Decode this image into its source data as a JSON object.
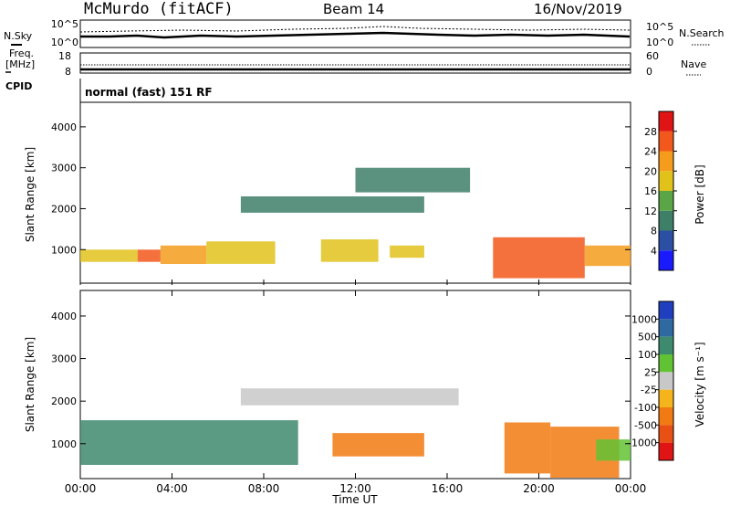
{
  "header": {
    "station": "McMurdo (fitACF)",
    "beam": "Beam 14",
    "date": "16/Nov/2019"
  },
  "panels": {
    "nsky_label": "N.Sky",
    "nsearch_label": "N.Search",
    "freq_label_line1": "Freq.",
    "freq_label_line2": "[MHz]",
    "nave_label": "Nave",
    "cpid_label": "CPID",
    "cpid_value": "normal (fast) 151 RF",
    "noise_ticks_left": [
      "10^5",
      "10^0"
    ],
    "noise_ticks_right": [
      "10^5",
      "10^0"
    ],
    "freq_ticks": [
      "18",
      "8"
    ],
    "nave_ticks": [
      "60",
      "0"
    ]
  },
  "chart_data": [
    {
      "type": "heatmap",
      "name": "power",
      "ylabel": "Slant Range [km]",
      "yticks": [
        "1000",
        "2000",
        "3000",
        "4000"
      ],
      "ylim": [
        180,
        4600
      ],
      "colorbar_label": "Power [dB]",
      "colorbar_ticks": [
        "4",
        "8",
        "12",
        "16",
        "20",
        "24",
        "28"
      ],
      "colors": [
        "#1a1aff",
        "#2a4fa3",
        "#3e7f68",
        "#5aa646",
        "#e0c21b",
        "#f59c1c",
        "#f2581c",
        "#e01414"
      ],
      "bands": [
        {
          "x": [
            0.0,
            2.5
          ],
          "y": [
            700,
            1000
          ],
          "value": 17
        },
        {
          "x": [
            2.5,
            3.5
          ],
          "y": [
            700,
            1000
          ],
          "value": 26
        },
        {
          "x": [
            3.5,
            5.5
          ],
          "y": [
            650,
            1100
          ],
          "value": 20
        },
        {
          "x": [
            5.5,
            8.5
          ],
          "y": [
            650,
            1200
          ],
          "value": 18
        },
        {
          "x": [
            10.5,
            13.0
          ],
          "y": [
            700,
            1250
          ],
          "value": 16
        },
        {
          "x": [
            13.5,
            15.0
          ],
          "y": [
            800,
            1100
          ],
          "value": 16
        },
        {
          "x": [
            18.0,
            22.0
          ],
          "y": [
            300,
            1300
          ],
          "value": 26
        },
        {
          "x": [
            22.0,
            24.0
          ],
          "y": [
            600,
            1100
          ],
          "value": 20
        },
        {
          "x": [
            7.0,
            15.0
          ],
          "y": [
            1900,
            2300
          ],
          "value": 10
        },
        {
          "x": [
            12.0,
            17.0
          ],
          "y": [
            2400,
            3000
          ],
          "value": 8
        }
      ]
    },
    {
      "type": "heatmap",
      "name": "velocity",
      "ylabel": "Slant Range [km]",
      "yticks": [
        "1000",
        "2000",
        "3000",
        "4000"
      ],
      "ylim": [
        180,
        4600
      ],
      "xlabel": "Time UT",
      "xticks": [
        "00:00",
        "04:00",
        "08:00",
        "12:00",
        "16:00",
        "20:00",
        "00:00"
      ],
      "colorbar_label": "Velocity [m s⁻¹]",
      "colorbar_ticks": [
        "1000",
        "500",
        "100",
        "25",
        "-25",
        "-100",
        "-500",
        "-1000"
      ],
      "colors": [
        "#1f3fbf",
        "#2e6aa0",
        "#3e8a6e",
        "#61c234",
        "#c8c8c8",
        "#f5b41c",
        "#f27a12",
        "#e85014",
        "#e01414"
      ],
      "bands": [
        {
          "x": [
            0.0,
            9.5
          ],
          "y": [
            500,
            1550
          ],
          "value": 150
        },
        {
          "x": [
            7.0,
            16.5
          ],
          "y": [
            1900,
            2300
          ],
          "value": 0
        },
        {
          "x": [
            11.0,
            15.0
          ],
          "y": [
            700,
            1250
          ],
          "value": -150
        },
        {
          "x": [
            18.5,
            20.5
          ],
          "y": [
            300,
            1500
          ],
          "value": -150
        },
        {
          "x": [
            20.5,
            23.5
          ],
          "y": [
            200,
            1400
          ],
          "value": -120
        },
        {
          "x": [
            22.5,
            24.0
          ],
          "y": [
            600,
            1100
          ],
          "value": 80
        }
      ]
    }
  ]
}
